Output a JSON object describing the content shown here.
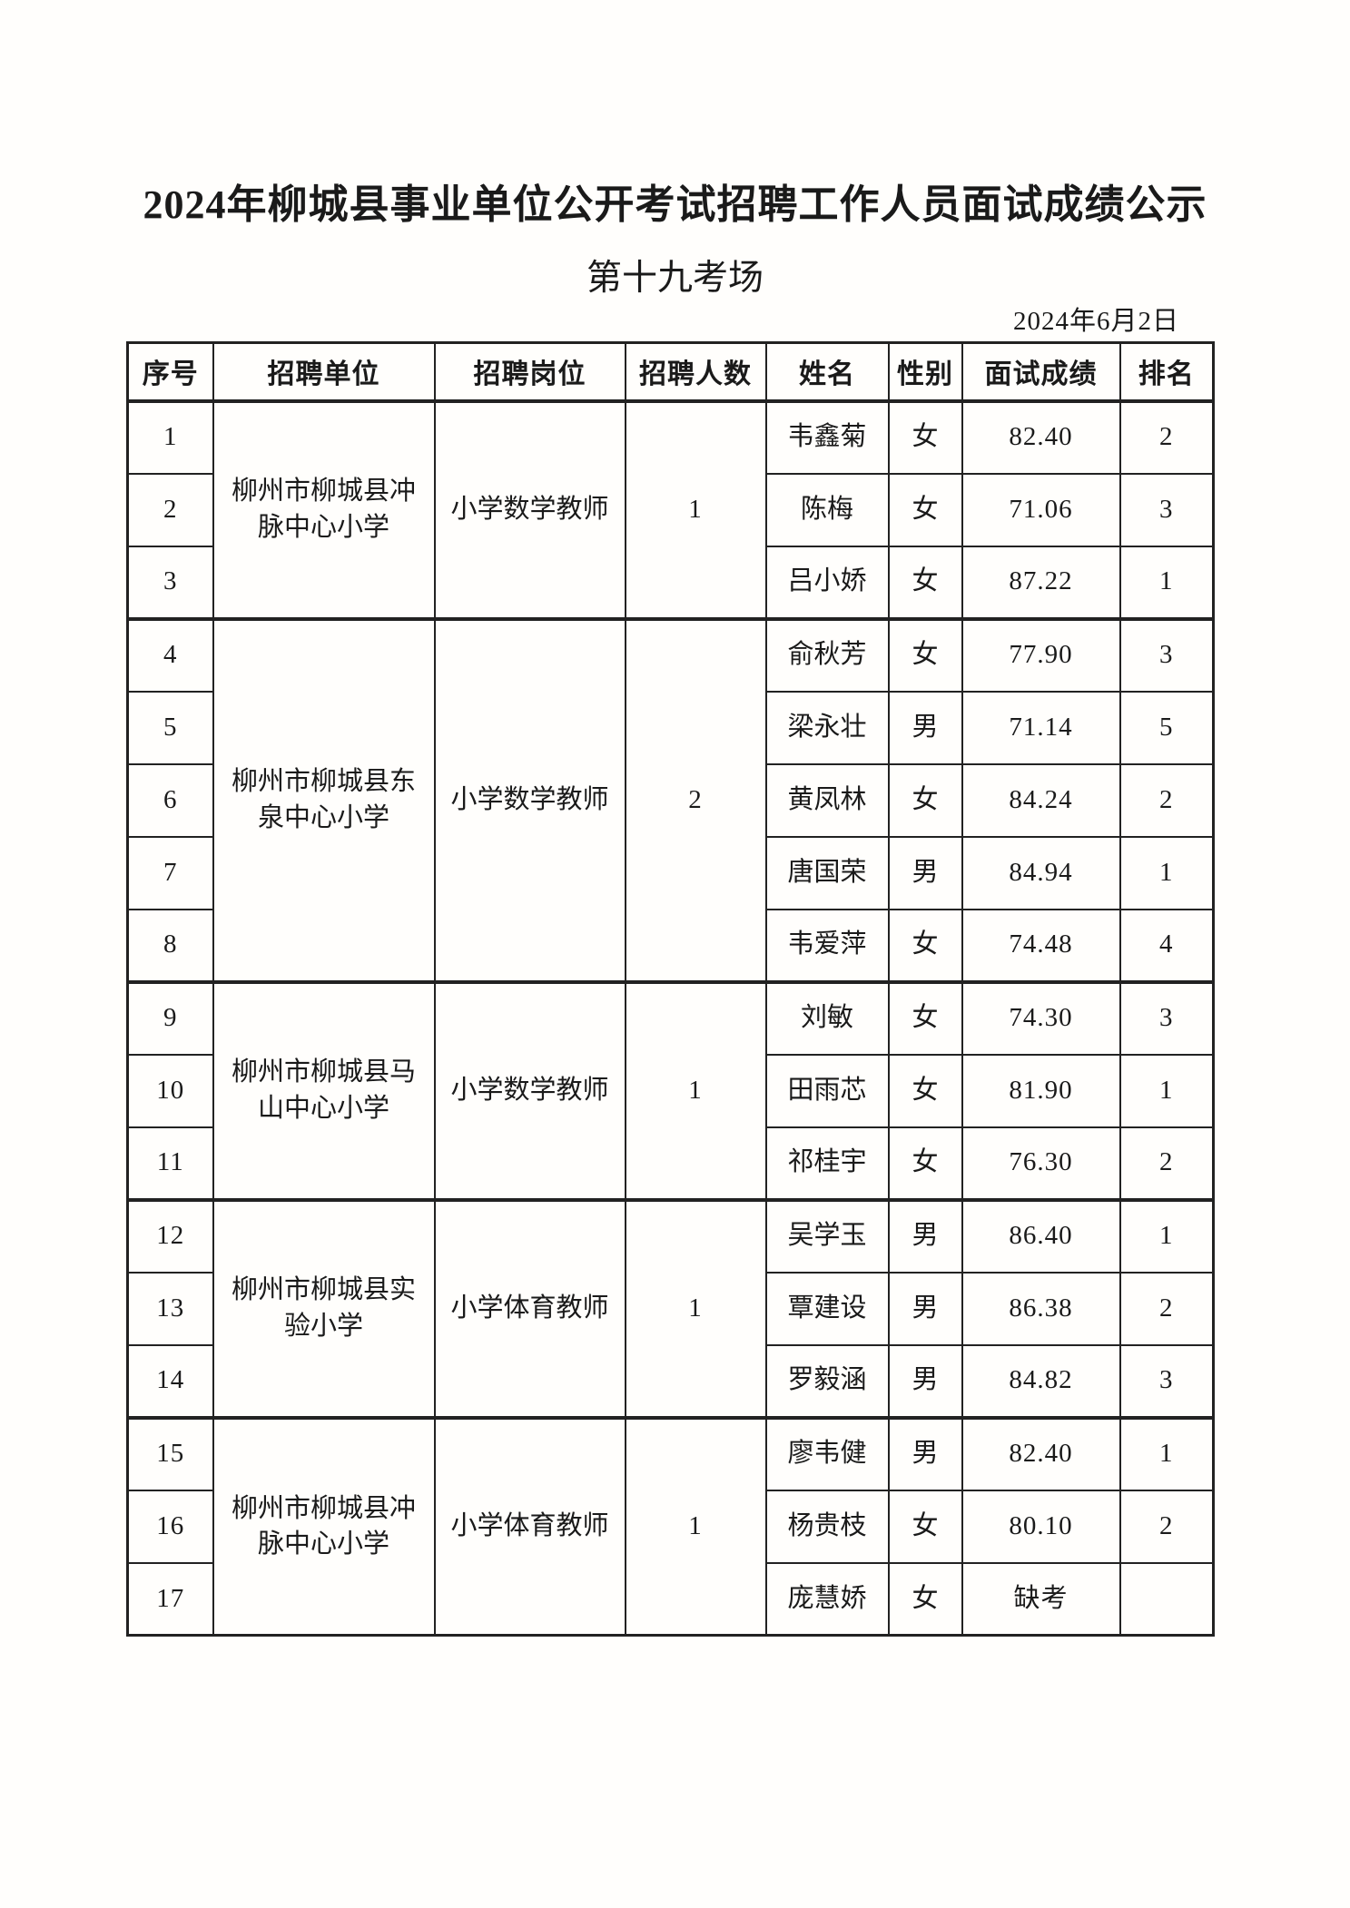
{
  "page": {
    "title": "2024年柳城县事业单位公开考试招聘工作人员面试成绩公示",
    "subtitle": "第十九考场",
    "date": "2024年6月2日"
  },
  "colors": {
    "ink": "#1a1a1a",
    "border": "#222222",
    "paper": "#fffefc"
  },
  "table": {
    "headers": [
      "序号",
      "招聘单位",
      "招聘岗位",
      "招聘人数",
      "姓名",
      "性别",
      "面试成绩",
      "排名"
    ],
    "groups": [
      {
        "unit": "柳州市柳城县冲脉中心小学",
        "position": "小学数学教师",
        "count": "1",
        "rows": [
          {
            "no": "1",
            "name": "韦鑫菊",
            "gender": "女",
            "score": "82.40",
            "rank": "2"
          },
          {
            "no": "2",
            "name": "陈梅",
            "gender": "女",
            "score": "71.06",
            "rank": "3"
          },
          {
            "no": "3",
            "name": "吕小娇",
            "gender": "女",
            "score": "87.22",
            "rank": "1"
          }
        ]
      },
      {
        "unit": "柳州市柳城县东泉中心小学",
        "position": "小学数学教师",
        "count": "2",
        "rows": [
          {
            "no": "4",
            "name": "俞秋芳",
            "gender": "女",
            "score": "77.90",
            "rank": "3"
          },
          {
            "no": "5",
            "name": "梁永壮",
            "gender": "男",
            "score": "71.14",
            "rank": "5"
          },
          {
            "no": "6",
            "name": "黄凤林",
            "gender": "女",
            "score": "84.24",
            "rank": "2"
          },
          {
            "no": "7",
            "name": "唐国荣",
            "gender": "男",
            "score": "84.94",
            "rank": "1"
          },
          {
            "no": "8",
            "name": "韦爱萍",
            "gender": "女",
            "score": "74.48",
            "rank": "4"
          }
        ]
      },
      {
        "unit": "柳州市柳城县马山中心小学",
        "position": "小学数学教师",
        "count": "1",
        "rows": [
          {
            "no": "9",
            "name": "刘敏",
            "gender": "女",
            "score": "74.30",
            "rank": "3"
          },
          {
            "no": "10",
            "name": "田雨芯",
            "gender": "女",
            "score": "81.90",
            "rank": "1"
          },
          {
            "no": "11",
            "name": "祁桂宇",
            "gender": "女",
            "score": "76.30",
            "rank": "2"
          }
        ]
      },
      {
        "unit": "柳州市柳城县实验小学",
        "position": "小学体育教师",
        "count": "1",
        "rows": [
          {
            "no": "12",
            "name": "吴学玉",
            "gender": "男",
            "score": "86.40",
            "rank": "1"
          },
          {
            "no": "13",
            "name": "覃建设",
            "gender": "男",
            "score": "86.38",
            "rank": "2"
          },
          {
            "no": "14",
            "name": "罗毅涵",
            "gender": "男",
            "score": "84.82",
            "rank": "3"
          }
        ]
      },
      {
        "unit": "柳州市柳城县冲脉中心小学",
        "position": "小学体育教师",
        "count": "1",
        "rows": [
          {
            "no": "15",
            "name": "廖韦健",
            "gender": "男",
            "score": "82.40",
            "rank": "1"
          },
          {
            "no": "16",
            "name": "杨贵枝",
            "gender": "女",
            "score": "80.10",
            "rank": "2"
          },
          {
            "no": "17",
            "name": "庞慧娇",
            "gender": "女",
            "score": "缺考",
            "rank": ""
          }
        ]
      }
    ]
  }
}
